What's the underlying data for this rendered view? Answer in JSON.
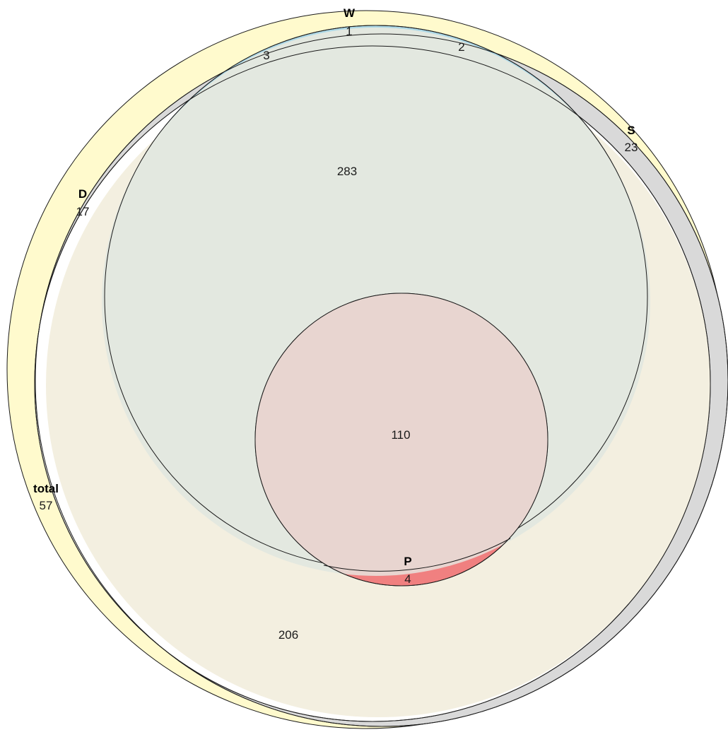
{
  "diagram": {
    "type": "euler",
    "sets": [
      {
        "id": "total",
        "label": "total",
        "only_count": "57",
        "color": "#fffacd"
      },
      {
        "id": "S",
        "label": "S",
        "only_count": "23",
        "color": "#d9d9d9"
      },
      {
        "id": "D",
        "label": "D",
        "only_count": "17",
        "color": "#ffffff"
      },
      {
        "id": "W",
        "label": "W",
        "only_count": "",
        "color": "#add8e6"
      },
      {
        "id": "P",
        "label": "P",
        "only_count": "4",
        "color": "#f08080"
      }
    ],
    "region_counts": {
      "top_sliver_1": "1",
      "top_sliver_2": "2",
      "top_sliver_3": "3",
      "large_inner": "283",
      "center": "110",
      "lower": "206"
    }
  }
}
